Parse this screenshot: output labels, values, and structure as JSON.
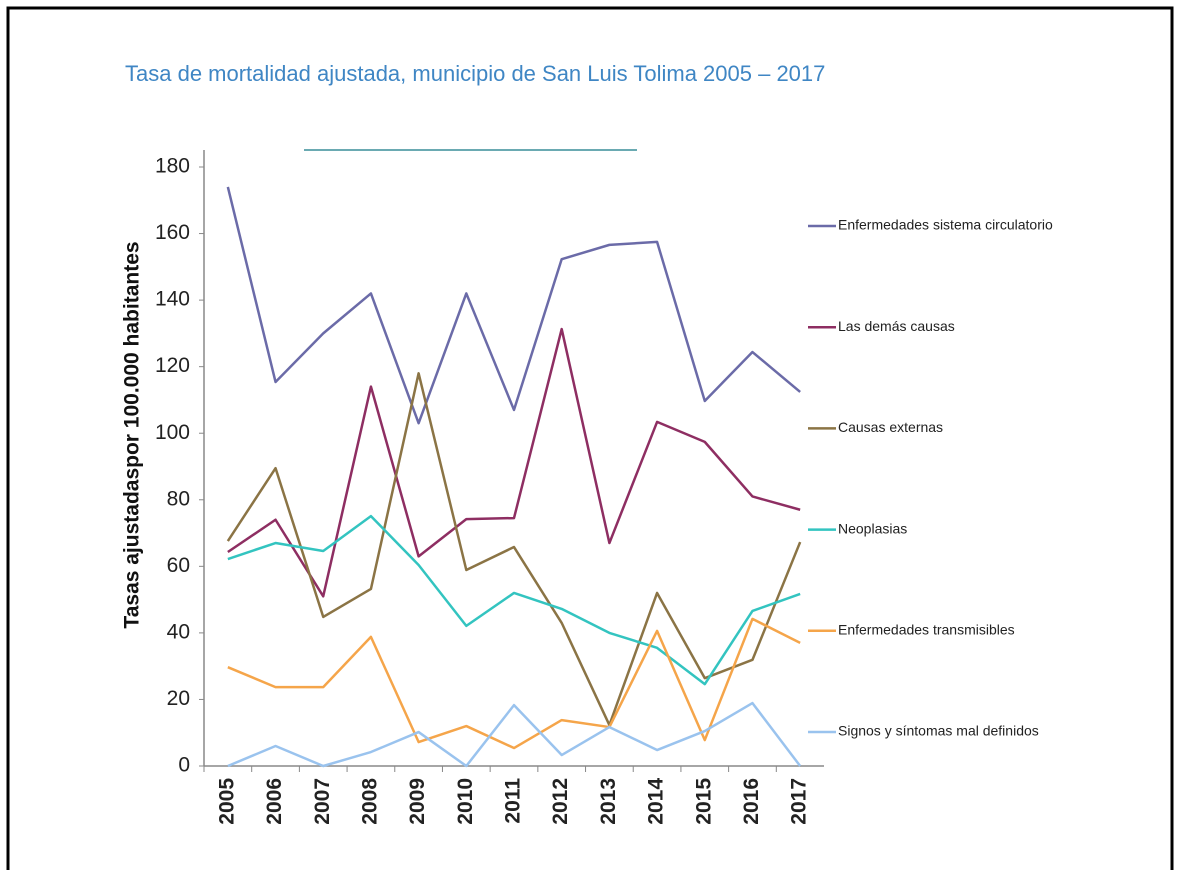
{
  "chart_data": {
    "type": "line",
    "title": "Tasa de mortalidad ajustada, municipio de San Luis Tolima 2005 – 2017",
    "y_label": "Tasas ajustadaspor 100.000 habitantes",
    "categories": [
      "2005",
      "2006",
      "2007",
      "2008",
      "2009",
      "2010",
      "2011",
      "2012",
      "2013",
      "2014",
      "2015",
      "2016",
      "2017"
    ],
    "ylim": [
      0,
      180
    ],
    "yticks": [
      0,
      20,
      40,
      60,
      80,
      100,
      120,
      140,
      160,
      180
    ],
    "grid": false,
    "legend": "right",
    "series": [
      {
        "name": "Enfermedades sistema circulatorio",
        "color": "#6b6ba8",
        "values": [
          174,
          115.4,
          130,
          142,
          103,
          142,
          107,
          152.3,
          156.6,
          157.5,
          109.7,
          124.4,
          112.4
        ]
      },
      {
        "name": "Las demás causas",
        "color": "#8e2e62",
        "values": [
          64.3,
          74,
          51,
          114,
          63,
          74.2,
          74.5,
          131.3,
          67,
          103.4,
          97.4,
          81,
          77
        ]
      },
      {
        "name": "Causas externas",
        "color": "#8b7445",
        "values": [
          67.6,
          89.5,
          44.8,
          53.2,
          118,
          58.9,
          65.8,
          43,
          12.3,
          52,
          26.4,
          31.9,
          67.3
        ]
      },
      {
        "name": "Neoplasias",
        "color": "#33c4c0",
        "values": [
          62.2,
          67,
          64.6,
          75.1,
          60.4,
          42.1,
          52,
          47.2,
          40,
          35.5,
          24.6,
          46.6,
          51.7
        ]
      },
      {
        "name": "Enfermedades transmisibles",
        "color": "#f5a54a",
        "values": [
          29.7,
          23.7,
          23.7,
          38.8,
          7.2,
          12,
          5.4,
          13.8,
          11.7,
          40.6,
          7.8,
          44.2,
          37
        ]
      },
      {
        "name": "Signos y síntomas mal definidos",
        "color": "#9ac3ee",
        "values": [
          0,
          6,
          0,
          4.2,
          10.2,
          0,
          18.3,
          3.3,
          11.7,
          4.8,
          10.5,
          18.9,
          0
        ]
      }
    ]
  }
}
